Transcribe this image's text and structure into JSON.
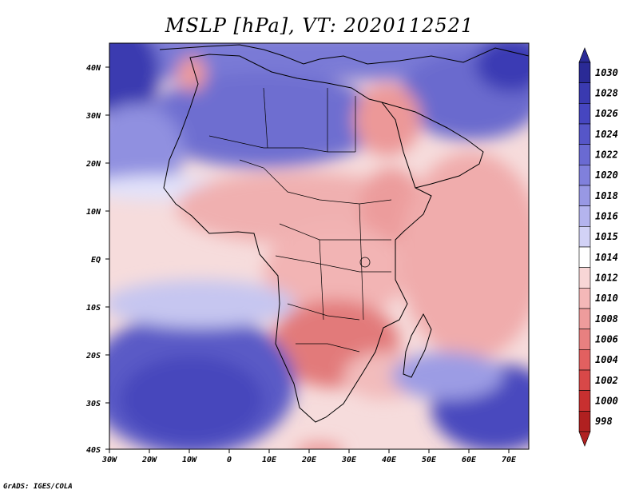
{
  "title": "MSLP [hPa], VT: 2020112521",
  "credit": "GrADS: IGES/COLA",
  "lat_labels": [
    "40N",
    "30N",
    "20N",
    "10N",
    "EQ",
    "10S",
    "20S",
    "30S",
    "40S"
  ],
  "lon_labels": [
    "30W",
    "20W",
    "10W",
    "0",
    "10E",
    "20E",
    "30E",
    "40E",
    "50E",
    "60E",
    "70E"
  ],
  "colorbar": {
    "levels": [
      "1030",
      "1028",
      "1026",
      "1024",
      "1022",
      "1020",
      "1018",
      "1016",
      "1015",
      "1014",
      "1012",
      "1010",
      "1008",
      "1006",
      "1004",
      "1002",
      "1000",
      "998"
    ],
    "colors": [
      "#2a2a96",
      "#3a3ab0",
      "#4646c0",
      "#5656c8",
      "#6a6ad2",
      "#8080dc",
      "#9898e4",
      "#b4b4ee",
      "#d2d2f6",
      "#ffffff",
      "#f8d6d6",
      "#f4b8b8",
      "#ee9c9c",
      "#e88080",
      "#e26060",
      "#d84848",
      "#c83030",
      "#b02020"
    ]
  },
  "field_colors": {
    "ocean_high": "#4c4cc2",
    "ocean_mid": "#8686da",
    "ocean_light": "#c8c8f2",
    "neutral": "#f4e4e4",
    "low_light": "#f4bcbc",
    "low_mid": "#ec9a9a",
    "low_deep": "#e27676",
    "sahara": "#6e6ed0"
  }
}
